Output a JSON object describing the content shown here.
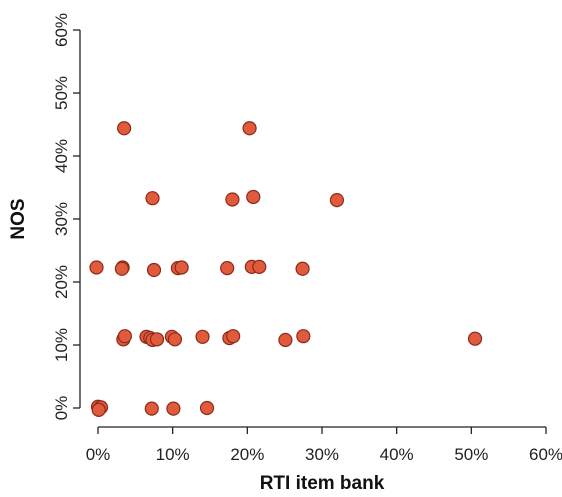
{
  "chart_data": {
    "type": "scatter",
    "xlabel": "RTI item bank",
    "ylabel": "NOS",
    "xlim": [
      0,
      60
    ],
    "ylim": [
      0,
      60
    ],
    "x_ticks": [
      0,
      10,
      20,
      30,
      40,
      50,
      60
    ],
    "y_ticks": [
      0,
      10,
      20,
      30,
      40,
      50,
      60
    ],
    "x_tick_labels": [
      "0%",
      "10%",
      "20%",
      "30%",
      "40%",
      "50%",
      "60%"
    ],
    "y_tick_labels": [
      "0%",
      "10%",
      "20%",
      "30%",
      "40%",
      "50%",
      "60%"
    ],
    "grid": false,
    "colors": {
      "marker_fill": "#e05a3c",
      "marker_edge": "#8c2a1a",
      "axis": "#222222"
    },
    "points": [
      {
        "x": 3.5,
        "y": 44.4
      },
      {
        "x": 20.3,
        "y": 44.4
      },
      {
        "x": 7.3,
        "y": 33.3
      },
      {
        "x": 18.0,
        "y": 33.1
      },
      {
        "x": 20.8,
        "y": 33.5
      },
      {
        "x": 32.0,
        "y": 33.0
      },
      {
        "x": -0.2,
        "y": 22.3
      },
      {
        "x": 3.3,
        "y": 22.3
      },
      {
        "x": 3.2,
        "y": 22.1
      },
      {
        "x": 7.5,
        "y": 21.9
      },
      {
        "x": 10.7,
        "y": 22.2
      },
      {
        "x": 11.2,
        "y": 22.3
      },
      {
        "x": 17.3,
        "y": 22.2
      },
      {
        "x": 20.6,
        "y": 22.4
      },
      {
        "x": 21.6,
        "y": 22.4
      },
      {
        "x": 27.4,
        "y": 22.1
      },
      {
        "x": 3.4,
        "y": 10.9
      },
      {
        "x": 3.6,
        "y": 11.4
      },
      {
        "x": 6.5,
        "y": 11.3
      },
      {
        "x": 7.0,
        "y": 11.1
      },
      {
        "x": 7.3,
        "y": 10.8
      },
      {
        "x": 7.9,
        "y": 10.9
      },
      {
        "x": 9.9,
        "y": 11.3
      },
      {
        "x": 10.3,
        "y": 10.9
      },
      {
        "x": 14.0,
        "y": 11.3
      },
      {
        "x": 17.6,
        "y": 11.1
      },
      {
        "x": 18.1,
        "y": 11.4
      },
      {
        "x": 25.1,
        "y": 10.8
      },
      {
        "x": 27.5,
        "y": 11.4
      },
      {
        "x": 50.5,
        "y": 11.0
      },
      {
        "x": 0.0,
        "y": 0.2
      },
      {
        "x": 0.4,
        "y": 0.1
      },
      {
        "x": 0.1,
        "y": -0.3
      },
      {
        "x": 7.2,
        "y": -0.1
      },
      {
        "x": 10.1,
        "y": -0.1
      },
      {
        "x": 14.6,
        "y": 0.0
      }
    ]
  }
}
